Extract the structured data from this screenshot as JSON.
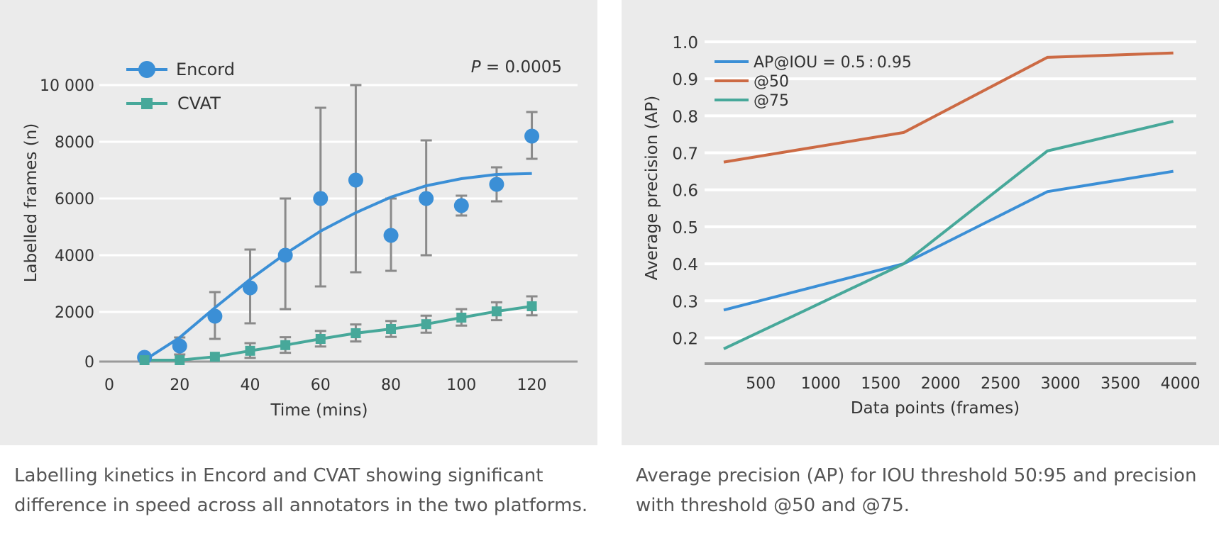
{
  "chart_data": [
    {
      "type": "scatter",
      "xlabel": "Time (mins)",
      "ylabel": "Labelled frames (n)",
      "annotation": "P = 0.0005",
      "annotation_italic": "P",
      "annotation_rest": " = 0.0005",
      "xlim": [
        0,
        135
      ],
      "ylim": [
        0,
        10000
      ],
      "xticks": [
        "0",
        "20",
        "40",
        "60",
        "80",
        "100",
        "120"
      ],
      "xtick_values": [
        0,
        20,
        40,
        60,
        80,
        100,
        120
      ],
      "yticks": [
        "0",
        "2000",
        "4000",
        "6000",
        "8000",
        "10 000"
      ],
      "ytick_values": [
        0,
        2000,
        4000,
        6000,
        8000,
        10000
      ],
      "grid": "horizontal",
      "legend_position": "top-left",
      "series": [
        {
          "name": "Encord",
          "color": "#3b8fd6",
          "marker": "circle",
          "x": [
            10,
            20,
            30,
            40,
            50,
            60,
            70,
            80,
            90,
            100,
            110,
            120
          ],
          "y": [
            400,
            800,
            1850,
            2850,
            4000,
            6000,
            6650,
            4700,
            6000,
            5750,
            6500,
            8200
          ],
          "err_low": [
            null,
            500,
            1050,
            1600,
            2100,
            2900,
            3400,
            3450,
            4000,
            5400,
            5900,
            7400
          ],
          "err_high": [
            null,
            1100,
            2700,
            4200,
            6000,
            9200,
            10000,
            6000,
            8050,
            6100,
            7100,
            9050
          ],
          "fit_x": [
            10,
            20,
            30,
            40,
            50,
            60,
            70,
            80,
            90,
            100,
            110,
            120
          ],
          "fit_y": [
            0,
            1100,
            2150,
            3150,
            4050,
            4850,
            5500,
            6050,
            6450,
            6700,
            6850,
            6880
          ]
        },
        {
          "name": "CVAT",
          "color": "#47a89a",
          "marker": "square",
          "x": [
            10,
            20,
            30,
            40,
            50,
            60,
            70,
            80,
            90,
            100,
            110,
            120
          ],
          "y": [
            80,
            180,
            420,
            630,
            830,
            1050,
            1250,
            1400,
            1570,
            1800,
            2020,
            2200
          ],
          "err_low": [
            null,
            null,
            null,
            380,
            560,
            780,
            960,
            1120,
            1270,
            1520,
            1710,
            1880
          ],
          "err_high": [
            null,
            null,
            null,
            900,
            1110,
            1330,
            1560,
            1680,
            1870,
            2100,
            2340,
            2550
          ]
        }
      ],
      "caption": "Labelling kinetics in Encord and CVAT showing significant difference in speed across all annotators in the two platforms."
    },
    {
      "type": "line",
      "xlabel": "Data points (frames)",
      "ylabel": "Average precision (AP)",
      "xlim": [
        90,
        4180
      ],
      "ylim": [
        0.13,
        1.0
      ],
      "xticks": [
        "500",
        "1000",
        "1500",
        "2000",
        "2500",
        "3000",
        "3500",
        "4000"
      ],
      "xtick_values": [
        500,
        1000,
        1500,
        2000,
        2500,
        3000,
        3500,
        4000
      ],
      "yticks": [
        "0.2",
        "0.3",
        "0.4",
        "0.5",
        "0.6",
        "0.7",
        "0.8",
        "0.9",
        "1.0"
      ],
      "ytick_values": [
        0.2,
        0.3,
        0.4,
        0.5,
        0.6,
        0.7,
        0.8,
        0.9,
        1.0
      ],
      "grid": "horizontal",
      "legend_position": "top-left",
      "series": [
        {
          "name": "AP@IOU = 0.5 : 0.95",
          "color": "#3b8fd6",
          "x": [
            250,
            1750,
            2950,
            4000
          ],
          "y": [
            0.275,
            0.4,
            0.595,
            0.65
          ]
        },
        {
          "name": "@50",
          "color": "#cc6a44",
          "x": [
            250,
            1750,
            2950,
            4000
          ],
          "y": [
            0.675,
            0.755,
            0.958,
            0.97
          ]
        },
        {
          "name": "@75",
          "color": "#47a89a",
          "x": [
            250,
            1750,
            2950,
            4000
          ],
          "y": [
            0.17,
            0.4,
            0.705,
            0.785
          ]
        }
      ],
      "caption": "Average precision (AP) for IOU threshold 50:95 and precision with threshold @50 and @75."
    }
  ]
}
